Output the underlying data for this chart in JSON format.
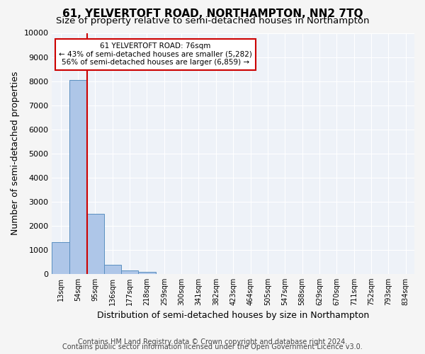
{
  "title": "61, YELVERTOFT ROAD, NORTHAMPTON, NN2 7TQ",
  "subtitle": "Size of property relative to semi-detached houses in Northampton",
  "xlabel": "Distribution of semi-detached houses by size in Northampton",
  "ylabel": "Number of semi-detached properties",
  "bin_labels": [
    "13sqm",
    "54sqm",
    "95sqm",
    "136sqm",
    "177sqm",
    "218sqm",
    "259sqm",
    "300sqm",
    "341sqm",
    "382sqm",
    "423sqm",
    "464sqm",
    "505sqm",
    "547sqm",
    "588sqm",
    "629sqm",
    "670sqm",
    "711sqm",
    "752sqm",
    "793sqm",
    "834sqm"
  ],
  "bar_heights": [
    1320,
    8050,
    2500,
    375,
    130,
    90,
    0,
    0,
    0,
    0,
    0,
    0,
    0,
    0,
    0,
    0,
    0,
    0,
    0,
    0,
    0
  ],
  "bar_color": "#aec6e8",
  "bar_edge_color": "#5a8fc0",
  "property_line_x": 1.52,
  "annotation_text": "61 YELVERTOFT ROAD: 76sqm\n← 43% of semi-detached houses are smaller (5,282)\n56% of semi-detached houses are larger (6,859) →",
  "annotation_box_color": "#ffffff",
  "annotation_box_edge": "#cc0000",
  "vline_color": "#cc0000",
  "ylim": [
    0,
    10000
  ],
  "yticks": [
    0,
    1000,
    2000,
    3000,
    4000,
    5000,
    6000,
    7000,
    8000,
    9000,
    10000
  ],
  "footer_line1": "Contains HM Land Registry data © Crown copyright and database right 2024.",
  "footer_line2": "Contains public sector information licensed under the Open Government Licence v3.0.",
  "bg_color": "#eef2f8",
  "grid_color": "#ffffff",
  "title_fontsize": 11,
  "subtitle_fontsize": 9.5,
  "xlabel_fontsize": 9,
  "ylabel_fontsize": 9,
  "footer_fontsize": 7
}
